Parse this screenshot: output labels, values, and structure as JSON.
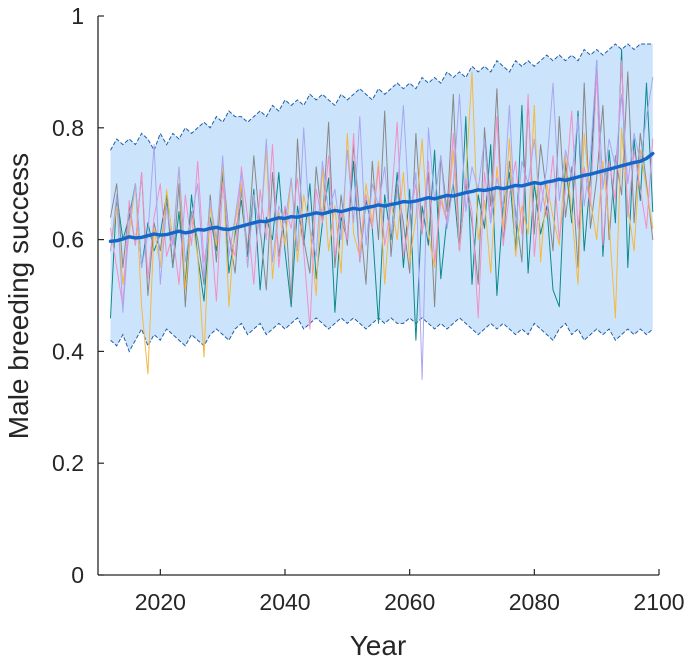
{
  "chart_data": {
    "type": "line",
    "title": "",
    "xlabel": "Year",
    "ylabel": "Male breeding success",
    "xlim": [
      2010,
      2100
    ],
    "ylim": [
      0,
      1
    ],
    "xticks": [
      2020,
      2040,
      2060,
      2080,
      2100
    ],
    "yticks": [
      0,
      0.2,
      0.4,
      0.6,
      0.8,
      1
    ],
    "xtick_labels": [
      "2020",
      "2040",
      "2060",
      "2080",
      "2100"
    ],
    "ytick_labels": [
      "0",
      "0.2",
      "0.4",
      "0.6",
      "0.8",
      "1"
    ],
    "grid": false,
    "legend": "none",
    "x_start": 2012,
    "x_end": 2099,
    "band": {
      "color": "#cce4fb",
      "edge_color": "#1f5fa8",
      "upper": [
        0.76,
        0.78,
        0.77,
        0.78,
        0.77,
        0.79,
        0.78,
        0.76,
        0.79,
        0.77,
        0.79,
        0.78,
        0.8,
        0.79,
        0.8,
        0.81,
        0.8,
        0.82,
        0.81,
        0.83,
        0.82,
        0.82,
        0.81,
        0.82,
        0.83,
        0.82,
        0.84,
        0.83,
        0.85,
        0.84,
        0.85,
        0.84,
        0.86,
        0.85,
        0.86,
        0.85,
        0.84,
        0.86,
        0.85,
        0.86,
        0.87,
        0.86,
        0.85,
        0.87,
        0.86,
        0.87,
        0.88,
        0.87,
        0.88,
        0.87,
        0.89,
        0.88,
        0.89,
        0.88,
        0.9,
        0.89,
        0.9,
        0.89,
        0.91,
        0.9,
        0.91,
        0.9,
        0.92,
        0.91,
        0.9,
        0.92,
        0.91,
        0.92,
        0.91,
        0.92,
        0.93,
        0.92,
        0.93,
        0.92,
        0.93,
        0.92,
        0.94,
        0.93,
        0.94,
        0.93,
        0.94,
        0.95,
        0.94,
        0.95,
        0.94,
        0.95,
        0.95,
        0.95
      ],
      "lower": [
        0.42,
        0.41,
        0.43,
        0.4,
        0.42,
        0.44,
        0.41,
        0.43,
        0.42,
        0.44,
        0.43,
        0.42,
        0.41,
        0.43,
        0.42,
        0.41,
        0.43,
        0.44,
        0.43,
        0.42,
        0.44,
        0.45,
        0.43,
        0.44,
        0.45,
        0.43,
        0.44,
        0.45,
        0.44,
        0.45,
        0.46,
        0.44,
        0.45,
        0.46,
        0.45,
        0.44,
        0.45,
        0.46,
        0.45,
        0.46,
        0.45,
        0.44,
        0.45,
        0.46,
        0.45,
        0.46,
        0.45,
        0.45,
        0.46,
        0.45,
        0.46,
        0.45,
        0.44,
        0.45,
        0.44,
        0.45,
        0.46,
        0.45,
        0.44,
        0.43,
        0.44,
        0.45,
        0.44,
        0.45,
        0.44,
        0.43,
        0.44,
        0.43,
        0.45,
        0.44,
        0.43,
        0.42,
        0.44,
        0.45,
        0.43,
        0.44,
        0.42,
        0.43,
        0.44,
        0.43,
        0.44,
        0.42,
        0.43,
        0.44,
        0.43,
        0.44,
        0.43,
        0.44
      ]
    },
    "series": [
      {
        "color": "#0a8a8a",
        "width": 1.0,
        "values": [
          0.46,
          0.68,
          0.6,
          0.64,
          0.7,
          0.55,
          0.63,
          0.58,
          0.61,
          0.68,
          0.55,
          0.65,
          0.52,
          0.68,
          0.57,
          0.49,
          0.64,
          0.58,
          0.72,
          0.54,
          0.61,
          0.67,
          0.57,
          0.69,
          0.51,
          0.64,
          0.6,
          0.72,
          0.58,
          0.48,
          0.66,
          0.59,
          0.7,
          0.53,
          0.63,
          0.71,
          0.47,
          0.64,
          0.6,
          0.74,
          0.56,
          0.67,
          0.62,
          0.45,
          0.68,
          0.6,
          0.72,
          0.55,
          0.69,
          0.42,
          0.66,
          0.59,
          0.76,
          0.53,
          0.64,
          0.7,
          0.58,
          0.82,
          0.52,
          0.68,
          0.62,
          0.77,
          0.5,
          0.66,
          0.72,
          0.58,
          0.84,
          0.54,
          0.7,
          0.61,
          0.66,
          0.51,
          0.48,
          0.74,
          0.63,
          0.83,
          0.58,
          0.71,
          0.92,
          0.57,
          0.76,
          0.63,
          0.94,
          0.55,
          0.78,
          0.67,
          0.88,
          0.65
        ]
      },
      {
        "color": "#888888",
        "width": 1.0,
        "values": [
          0.64,
          0.7,
          0.55,
          0.66,
          0.59,
          0.72,
          0.5,
          0.63,
          0.58,
          0.67,
          0.55,
          0.7,
          0.48,
          0.65,
          0.6,
          0.52,
          0.68,
          0.56,
          0.73,
          0.61,
          0.54,
          0.69,
          0.58,
          0.75,
          0.62,
          0.51,
          0.72,
          0.57,
          0.66,
          0.49,
          0.78,
          0.6,
          0.54,
          0.73,
          0.63,
          0.81,
          0.55,
          0.68,
          0.59,
          0.77,
          0.64,
          0.52,
          0.74,
          0.6,
          0.83,
          0.57,
          0.7,
          0.63,
          0.54,
          0.79,
          0.61,
          0.72,
          0.48,
          0.75,
          0.65,
          0.86,
          0.58,
          0.7,
          0.63,
          0.52,
          0.8,
          0.66,
          0.87,
          0.59,
          0.74,
          0.65,
          0.56,
          0.85,
          0.61,
          0.77,
          0.68,
          0.58,
          0.82,
          0.64,
          0.73,
          0.55,
          0.88,
          0.62,
          0.71,
          0.84,
          0.6,
          0.75,
          0.68,
          0.9,
          0.63,
          0.79,
          0.7,
          0.6
        ]
      },
      {
        "color": "#f5b840",
        "width": 1.0,
        "values": [
          0.58,
          0.66,
          0.52,
          0.61,
          0.7,
          0.48,
          0.36,
          0.62,
          0.55,
          0.69,
          0.6,
          0.73,
          0.51,
          0.64,
          0.57,
          0.39,
          0.66,
          0.59,
          0.74,
          0.48,
          0.63,
          0.7,
          0.55,
          0.68,
          0.61,
          0.76,
          0.53,
          0.65,
          0.59,
          0.71,
          0.56,
          0.68,
          0.62,
          0.5,
          0.73,
          0.58,
          0.66,
          0.54,
          0.79,
          0.61,
          0.57,
          0.7,
          0.63,
          0.74,
          0.52,
          0.67,
          0.6,
          0.72,
          0.56,
          0.64,
          0.78,
          0.61,
          0.55,
          0.68,
          0.63,
          0.76,
          0.58,
          0.71,
          0.9,
          0.6,
          0.67,
          0.54,
          0.73,
          0.62,
          0.78,
          0.57,
          0.66,
          0.61,
          0.84,
          0.56,
          0.7,
          0.64,
          0.59,
          0.75,
          0.65,
          0.52,
          0.79,
          0.67,
          0.6,
          0.74,
          0.63,
          0.46,
          0.8,
          0.66,
          0.58,
          0.76,
          0.69,
          0.62
        ]
      },
      {
        "color": "#f28fc6",
        "width": 1.0,
        "values": [
          0.62,
          0.55,
          0.48,
          0.67,
          0.59,
          0.72,
          0.53,
          0.64,
          0.7,
          0.57,
          0.61,
          0.52,
          0.68,
          0.59,
          0.74,
          0.56,
          0.63,
          0.49,
          0.7,
          0.61,
          0.57,
          0.73,
          0.64,
          0.52,
          0.69,
          0.6,
          0.77,
          0.55,
          0.66,
          0.62,
          0.71,
          0.58,
          0.44,
          0.69,
          0.63,
          0.75,
          0.57,
          0.65,
          0.6,
          0.79,
          0.56,
          0.68,
          0.62,
          0.73,
          0.59,
          0.66,
          0.81,
          0.57,
          0.64,
          0.7,
          0.61,
          0.74,
          0.56,
          0.67,
          0.63,
          0.79,
          0.58,
          0.71,
          0.65,
          0.46,
          0.72,
          0.63,
          0.82,
          0.59,
          0.68,
          0.74,
          0.61,
          0.86,
          0.57,
          0.7,
          0.64,
          0.75,
          0.6,
          0.69,
          0.83,
          0.62,
          0.73,
          0.66,
          0.9,
          0.59,
          0.74,
          0.67,
          0.92,
          0.64,
          0.76,
          0.69,
          0.62,
          0.78
        ]
      },
      {
        "color": "#a8a6f2",
        "width": 1.0,
        "values": [
          0.58,
          0.68,
          0.47,
          0.63,
          0.7,
          0.55,
          0.61,
          0.77,
          0.52,
          0.66,
          0.59,
          0.73,
          0.56,
          0.64,
          0.7,
          0.53,
          0.67,
          0.6,
          0.75,
          0.57,
          0.64,
          0.72,
          0.55,
          0.68,
          0.61,
          0.78,
          0.56,
          0.66,
          0.63,
          0.71,
          0.58,
          0.8,
          0.62,
          0.57,
          0.74,
          0.65,
          0.69,
          0.6,
          0.76,
          0.63,
          0.82,
          0.59,
          0.7,
          0.66,
          0.73,
          0.61,
          0.68,
          0.84,
          0.64,
          0.72,
          0.35,
          0.8,
          0.67,
          0.75,
          0.62,
          0.7,
          0.86,
          0.65,
          0.73,
          0.69,
          0.78,
          0.63,
          0.71,
          0.66,
          0.84,
          0.62,
          0.74,
          0.7,
          0.78,
          0.65,
          0.73,
          0.88,
          0.67,
          0.76,
          0.71,
          0.82,
          0.66,
          0.75,
          0.92,
          0.69,
          0.78,
          0.73,
          0.86,
          0.7,
          0.79,
          0.74,
          0.82,
          0.89
        ]
      },
      {
        "color": "#1466c9",
        "width": 3.4,
        "values": [
          0.597,
          0.598,
          0.601,
          0.605,
          0.603,
          0.604,
          0.607,
          0.61,
          0.608,
          0.609,
          0.612,
          0.615,
          0.612,
          0.614,
          0.618,
          0.617,
          0.62,
          0.622,
          0.619,
          0.618,
          0.621,
          0.624,
          0.627,
          0.63,
          0.633,
          0.632,
          0.636,
          0.639,
          0.638,
          0.641,
          0.64,
          0.643,
          0.645,
          0.648,
          0.646,
          0.649,
          0.652,
          0.65,
          0.653,
          0.656,
          0.654,
          0.657,
          0.659,
          0.662,
          0.66,
          0.663,
          0.665,
          0.668,
          0.667,
          0.669,
          0.672,
          0.675,
          0.673,
          0.676,
          0.679,
          0.678,
          0.681,
          0.684,
          0.686,
          0.689,
          0.688,
          0.69,
          0.693,
          0.691,
          0.694,
          0.697,
          0.696,
          0.699,
          0.702,
          0.7,
          0.703,
          0.705,
          0.708,
          0.706,
          0.709,
          0.712,
          0.715,
          0.717,
          0.72,
          0.723,
          0.726,
          0.729,
          0.732,
          0.735,
          0.738,
          0.74,
          0.745,
          0.754
        ]
      }
    ]
  }
}
